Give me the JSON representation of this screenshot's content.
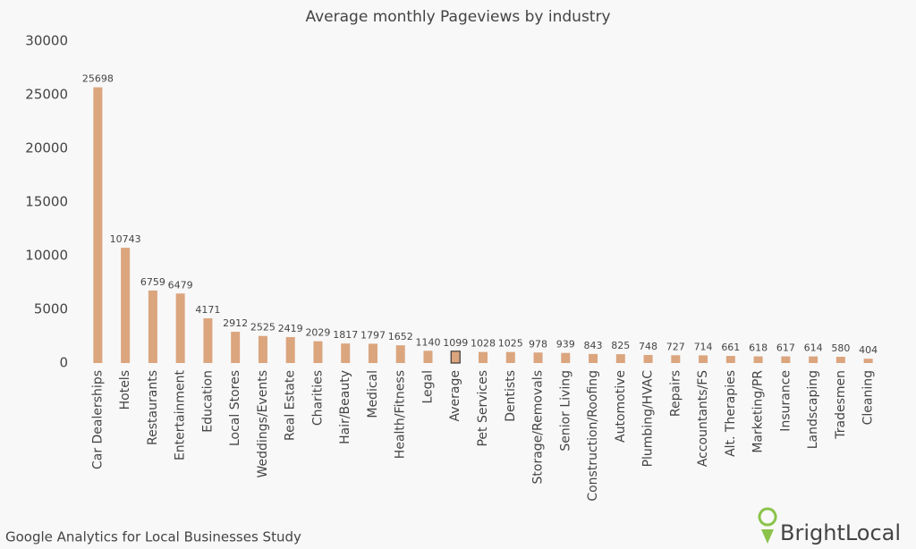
{
  "chart_data": {
    "type": "bar",
    "title": "Average monthly Pageviews by industry",
    "categories": [
      "Car Dealerships",
      "Hotels",
      "Restaurants",
      "Entertainment",
      "Education",
      "Local Stores",
      "Weddings/Events",
      "Real Estate",
      "Charities",
      "Hair/Beauty",
      "Medical",
      "Health/Fitness",
      "Legal",
      "Average",
      "Pet Services",
      "Dentists",
      "Storage/Removals",
      "Senior Living",
      "Construction/Roofing",
      "Automotive",
      "Plumbing/HVAC",
      "Repairs",
      "Accountants/FS",
      "Alt. Therapies",
      "Marketing/PR",
      "Insurance",
      "Landscaping",
      "Tradesmen",
      "Cleaning"
    ],
    "values": [
      25698,
      10743,
      6759,
      6479,
      4171,
      2912,
      2525,
      2419,
      2029,
      1817,
      1797,
      1652,
      1140,
      1099,
      1028,
      1025,
      978,
      939,
      843,
      825,
      748,
      727,
      714,
      661,
      618,
      617,
      614,
      580,
      404
    ],
    "color": "#dba57e",
    "highlight": {
      "category": "Average",
      "stroke": "#3a3a3a"
    },
    "ylim": [
      0,
      30000
    ],
    "yticks": [
      0,
      5000,
      10000,
      15000,
      20000,
      25000,
      30000
    ],
    "grid": false
  },
  "footer": {
    "source": "Google Analytics for Local Businesses Study",
    "brand": "BrightLocal"
  }
}
